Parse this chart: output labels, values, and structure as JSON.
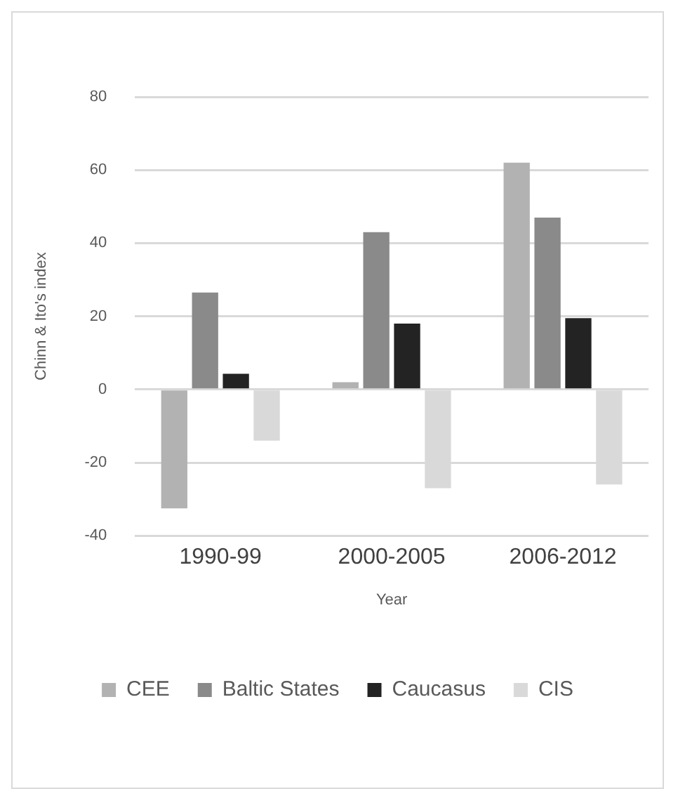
{
  "chart_data": {
    "type": "bar",
    "xlabel": "Year",
    "ylabel": "Chinn & Ito's index",
    "categories": [
      "1990-99",
      "2000-2005",
      "2006-2012"
    ],
    "series": [
      {
        "name": "CEE",
        "color": "#b2b2b2",
        "values": [
          -32.5,
          2,
          62
        ]
      },
      {
        "name": "Baltic States",
        "color": "#8a8a8a",
        "values": [
          26.5,
          43,
          47
        ]
      },
      {
        "name": "Caucasus",
        "color": "#232323",
        "values": [
          4.3,
          18,
          19.5
        ]
      },
      {
        "name": "CIS",
        "color": "#d9d9d9",
        "values": [
          -14,
          -27,
          -26
        ]
      }
    ],
    "ylim": [
      -40,
      80
    ],
    "yticks": [
      -40,
      -20,
      0,
      20,
      40,
      60,
      80
    ],
    "grid": "y",
    "legend": "bottom"
  }
}
